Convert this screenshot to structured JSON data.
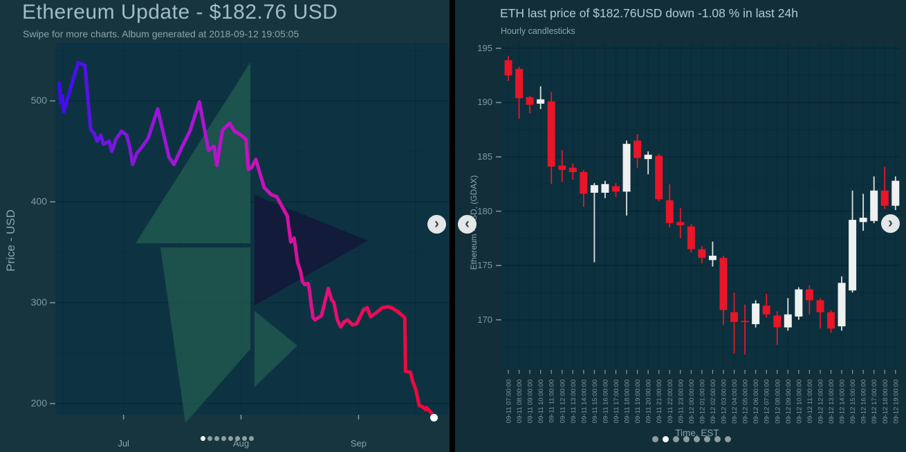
{
  "left": {
    "title": "Ethereum Update - $182.76 USD",
    "subtitle": "Swipe for more charts. Album generated at 2018-09-12 19:05:05",
    "y_axis_label": "Price - USD",
    "y_ticks": [
      500,
      400,
      300,
      200
    ],
    "x_ticks": [
      {
        "label": "Jul",
        "day": 18
      },
      {
        "label": "Aug",
        "day": 49
      },
      {
        "label": "Sep",
        "day": 80
      }
    ],
    "carousel": {
      "dots": 8,
      "active_index": 0
    }
  },
  "right": {
    "title": "ETH last price of $182.76USD down  -1.08 % in last 24h",
    "subtitle": "Hourly candlesticks",
    "y_axis_label": "Ethereum - USD, (GDAX)",
    "x_axis_label": "Time, EST",
    "y_ticks": [
      195,
      190,
      185,
      180,
      175,
      170
    ],
    "carousel": {
      "dots": 8,
      "active_index": 1
    }
  },
  "icons": {
    "chevron_left": "‹",
    "chevron_right": "›"
  },
  "colors": {
    "panel_left_bg": "#17353f",
    "panel_right_bg": "#122f39",
    "plot_left_bg": "#0d3343",
    "plot_right_bg": "#0c303e",
    "grid_major": "rgba(0,0,0,0.22)",
    "grid_minor": "rgba(0,0,0,0.12)",
    "axis_text": "#8099a2",
    "tick_text": "#7b949d",
    "candle_red": "#e91528",
    "candle_white": "#eef1ef",
    "wick_white": "#dde2df",
    "eth_teal": "#20594f",
    "eth_navy": "#131a3a",
    "endpoint_dot": "#ffffff",
    "line_gradient": [
      [
        0,
        "#3c0ceb"
      ],
      [
        0.06,
        "#4a10ec"
      ],
      [
        0.15,
        "#7a16df"
      ],
      [
        0.3,
        "#a315d6"
      ],
      [
        0.45,
        "#bd13c9"
      ],
      [
        0.55,
        "#cf11b5"
      ],
      [
        0.65,
        "#e00f8d"
      ],
      [
        0.75,
        "#ea0d5e"
      ],
      [
        0.88,
        "#ef0a44"
      ],
      [
        1,
        "#f40430"
      ]
    ]
  },
  "chart_data": [
    {
      "type": "line",
      "title": "Ethereum Update - $182.76 USD",
      "ylabel": "Price - USD",
      "x_unit": "days since 2018-06-13",
      "xlim": [
        0,
        104
      ],
      "ylim": [
        189,
        557.5
      ],
      "grid": true,
      "y_grid_major": [
        200,
        300,
        400,
        500
      ],
      "y_grid_minor": [
        250,
        350,
        450,
        550
      ],
      "x_grid": [
        2,
        18,
        33,
        49,
        64,
        80,
        95
      ],
      "x_ticks": [
        {
          "label": "Jul",
          "day": 18
        },
        {
          "label": "Aug",
          "day": 49
        },
        {
          "label": "Sep",
          "day": 80
        }
      ],
      "last_value": 186,
      "points": [
        [
          1,
          518
        ],
        [
          1.4,
          498
        ],
        [
          1.8,
          505
        ],
        [
          2.2,
          489
        ],
        [
          6,
          538
        ],
        [
          7.8,
          535
        ],
        [
          9.3,
          472
        ],
        [
          10.3,
          467
        ],
        [
          11,
          460
        ],
        [
          12,
          466
        ],
        [
          12.7,
          457
        ],
        [
          14.2,
          460
        ],
        [
          14.9,
          450
        ],
        [
          16,
          462
        ],
        [
          17.5,
          470
        ],
        [
          18.8,
          466
        ],
        [
          19.6,
          455
        ],
        [
          20.4,
          437
        ],
        [
          21.5,
          448
        ],
        [
          23,
          455
        ],
        [
          24.5,
          463
        ],
        [
          27,
          492
        ],
        [
          30,
          444
        ],
        [
          31.3,
          437
        ],
        [
          33.5,
          455
        ],
        [
          35.5,
          470
        ],
        [
          38,
          499
        ],
        [
          40.4,
          451
        ],
        [
          41.9,
          455
        ],
        [
          42.6,
          436
        ],
        [
          44.1,
          471
        ],
        [
          46,
          478
        ],
        [
          47.2,
          470
        ],
        [
          49,
          466
        ],
        [
          50.3,
          462
        ],
        [
          50.9,
          432
        ],
        [
          51.8,
          434
        ],
        [
          52.9,
          442
        ],
        [
          55.1,
          414
        ],
        [
          57,
          407
        ],
        [
          58.4,
          405
        ],
        [
          60.6,
          390
        ],
        [
          61.2,
          386
        ],
        [
          62.1,
          360
        ],
        [
          63,
          364
        ],
        [
          63.9,
          340
        ],
        [
          64.7,
          331
        ],
        [
          65.2,
          321
        ],
        [
          65.8,
          318
        ],
        [
          66.7,
          319
        ],
        [
          67.1,
          311
        ],
        [
          67.4,
          301
        ],
        [
          68,
          285
        ],
        [
          68.5,
          283
        ],
        [
          69.3,
          285
        ],
        [
          70.2,
          287
        ],
        [
          72,
          314
        ],
        [
          72.9,
          303
        ],
        [
          73.5,
          300
        ],
        [
          74.4,
          283
        ],
        [
          75.3,
          276
        ],
        [
          76.2,
          281
        ],
        [
          77.1,
          283
        ],
        [
          78.4,
          278
        ],
        [
          79.5,
          279
        ],
        [
          81.3,
          293
        ],
        [
          82.3,
          295
        ],
        [
          83.2,
          286
        ],
        [
          85,
          291
        ],
        [
          86.3,
          295
        ],
        [
          87.8,
          296
        ],
        [
          88.7,
          295
        ],
        [
          90.4,
          291
        ],
        [
          91.3,
          288
        ],
        [
          92.2,
          285
        ],
        [
          92.4,
          232
        ],
        [
          93.7,
          231
        ],
        [
          94.2,
          223
        ],
        [
          95.1,
          214
        ],
        [
          96,
          198
        ],
        [
          96.8,
          197
        ],
        [
          97.7,
          194
        ],
        [
          97.9,
          196
        ],
        [
          99.2,
          191
        ],
        [
          99.9,
          186
        ]
      ]
    },
    {
      "type": "candlestick",
      "title": "ETH last price of $182.76USD down  -1.08 % in last 24h",
      "subtitle": "Hourly candlesticks",
      "ylabel": "Ethereum - USD, (GDAX)",
      "xlabel": "Time, EST",
      "ylim": [
        165.4,
        195.5
      ],
      "grid": true,
      "y_grid_major": [
        170,
        175,
        180,
        185,
        190,
        195
      ],
      "y_grid_minor": [
        167.5,
        172.5,
        177.5,
        182.5,
        187.5,
        192.5
      ],
      "times": [
        "09-11 07:00:00",
        "09-11 08:00:00",
        "09-11 09:00:00",
        "09-11 10:00:00",
        "09-11 11:00:00",
        "09-11 12:00:00",
        "09-11 13:00:00",
        "09-11 14:00:00",
        "09-11 15:00:00",
        "09-11 16:00:00",
        "09-11 17:00:00",
        "09-11 18:00:00",
        "09-11 19:00:00",
        "09-11 20:00:00",
        "09-11 21:00:00",
        "09-11 22:00:00",
        "09-11 23:00:00",
        "09-12 00:00:00",
        "09-12 01:00:00",
        "09-12 02:00:00",
        "09-12 03:00:00",
        "09-12 04:00:00",
        "09-12 05:00:00",
        "09-12 06:00:00",
        "09-12 07:00:00",
        "09-12 08:00:00",
        "09-12 09:00:00",
        "09-12 10:00:00",
        "09-12 11:00:00",
        "09-12 12:00:00",
        "09-12 13:00:00",
        "09-12 14:00:00",
        "09-12 15:00:00",
        "09-12 16:00:00",
        "09-12 17:00:00",
        "09-12 18:00:00",
        "09-12 19:00:00"
      ],
      "ohlc": [
        [
          193.9,
          194.3,
          192.0,
          192.5
        ],
        [
          193.1,
          193.3,
          188.5,
          190.4
        ],
        [
          190.5,
          190.6,
          189.0,
          189.8
        ],
        [
          189.9,
          191.5,
          189.4,
          190.3
        ],
        [
          190.1,
          191.0,
          182.5,
          184.1
        ],
        [
          184.2,
          185.6,
          182.7,
          183.8
        ],
        [
          184.0,
          184.4,
          182.9,
          183.6
        ],
        [
          183.6,
          183.8,
          180.4,
          181.6
        ],
        [
          181.7,
          182.6,
          175.3,
          182.4
        ],
        [
          181.7,
          182.8,
          181.2,
          182.5
        ],
        [
          182.3,
          182.6,
          181.3,
          181.8
        ],
        [
          181.8,
          186.5,
          179.6,
          186.2
        ],
        [
          186.5,
          187.1,
          184.0,
          184.9
        ],
        [
          184.8,
          185.5,
          183.4,
          185.2
        ],
        [
          185.1,
          185.3,
          180.9,
          181.1
        ],
        [
          181.0,
          182.5,
          178.5,
          178.9
        ],
        [
          179.0,
          180.3,
          177.5,
          178.7
        ],
        [
          178.6,
          178.8,
          176.2,
          176.5
        ],
        [
          176.5,
          176.8,
          175.2,
          175.7
        ],
        [
          175.5,
          177.2,
          174.9,
          175.9
        ],
        [
          175.7,
          175.9,
          169.5,
          170.9
        ],
        [
          170.7,
          172.5,
          166.9,
          169.8
        ],
        [
          169.9,
          171.4,
          166.8,
          169.8
        ],
        [
          169.6,
          171.8,
          169.3,
          171.5
        ],
        [
          171.3,
          172.4,
          170.2,
          170.5
        ],
        [
          170.4,
          170.8,
          167.7,
          169.3
        ],
        [
          169.3,
          172.0,
          169.0,
          170.5
        ],
        [
          170.3,
          173.0,
          170.0,
          172.8
        ],
        [
          172.8,
          173.2,
          170.5,
          171.8
        ],
        [
          171.8,
          172.0,
          169.2,
          170.7
        ],
        [
          170.7,
          170.9,
          168.8,
          169.2
        ],
        [
          169.4,
          174.0,
          169.0,
          173.4
        ],
        [
          172.7,
          181.9,
          172.5,
          179.2
        ],
        [
          179.0,
          181.6,
          178.2,
          179.4
        ],
        [
          179.1,
          183.2,
          178.9,
          181.9
        ],
        [
          181.9,
          184.1,
          180.2,
          180.5
        ],
        [
          180.5,
          183.2,
          180.1,
          182.8
        ]
      ]
    }
  ]
}
